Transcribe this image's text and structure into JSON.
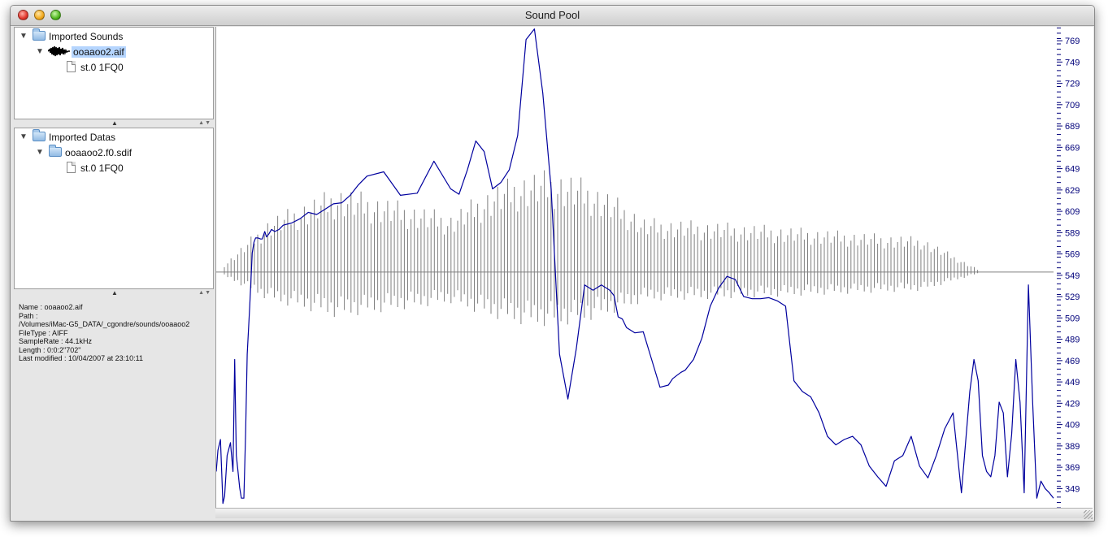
{
  "window": {
    "title": "Sound Pool"
  },
  "sounds_tree": {
    "root_label": "Imported Sounds",
    "file_label": "ooaaoo2.aif",
    "child_label": "st.0 1FQ0"
  },
  "datas_tree": {
    "root_label": "Imported Datas",
    "file_label": "ooaaoo2.f0.sdif",
    "child_label": "st.0 1FQ0"
  },
  "info": {
    "name": "Name : ooaaoo2.aif",
    "path_label": "Path :",
    "path_value": "/Volumes/iMac-G5_DATA/_cgondre/sounds/ooaaoo2",
    "filetype": "FileType : AIFF",
    "samplerate": "SampleRate : 44.1kHz",
    "length": "Length : 0:0:2\"702\"",
    "last_modified": "Last modified : 10/04/2007 at 23:10:11"
  },
  "chart_data": {
    "type": "line",
    "title": "",
    "xlabel": "",
    "ylabel": "",
    "ylim": [
      331,
      782
    ],
    "yticks": [
      349,
      369,
      389,
      409,
      429,
      449,
      469,
      489,
      509,
      529,
      549,
      569,
      589,
      609,
      629,
      649,
      669,
      689,
      709,
      729,
      749,
      769
    ],
    "axis_color": "#00007a",
    "waveform_color": "#7f7f7f",
    "curve_color": "#00009e",
    "f0_series": {
      "x": [
        0.0,
        0.002,
        0.005,
        0.008,
        0.01,
        0.013,
        0.017,
        0.02,
        0.022,
        0.024,
        0.026,
        0.028,
        0.03,
        0.033,
        0.035,
        0.037,
        0.04,
        0.043,
        0.045,
        0.047,
        0.05,
        0.053,
        0.055,
        0.058,
        0.06,
        0.063,
        0.066,
        0.07,
        0.075,
        0.08,
        0.09,
        0.1,
        0.11,
        0.12,
        0.13,
        0.14,
        0.15,
        0.16,
        0.17,
        0.18,
        0.2,
        0.22,
        0.24,
        0.26,
        0.28,
        0.29,
        0.3,
        0.31,
        0.32,
        0.33,
        0.34,
        0.35,
        0.36,
        0.37,
        0.38,
        0.39,
        0.4,
        0.41,
        0.42,
        0.43,
        0.44,
        0.45,
        0.46,
        0.47,
        0.475,
        0.48,
        0.485,
        0.49,
        0.5,
        0.51,
        0.52,
        0.53,
        0.54,
        0.545,
        0.55,
        0.555,
        0.56,
        0.57,
        0.58,
        0.59,
        0.6,
        0.61,
        0.62,
        0.63,
        0.64,
        0.65,
        0.66,
        0.67,
        0.68,
        0.69,
        0.7,
        0.71,
        0.72,
        0.73,
        0.74,
        0.75,
        0.76,
        0.77,
        0.78,
        0.79,
        0.8,
        0.81,
        0.82,
        0.83,
        0.84,
        0.85,
        0.86,
        0.87,
        0.88,
        0.89,
        0.9,
        0.905,
        0.91,
        0.915,
        0.92,
        0.925,
        0.93,
        0.935,
        0.94,
        0.945,
        0.95,
        0.955,
        0.96,
        0.965,
        0.97,
        0.975,
        0.98,
        0.985,
        0.99,
        0.995,
        1.0
      ],
      "y": [
        365,
        385,
        395,
        335,
        342,
        380,
        392,
        365,
        470,
        380,
        365,
        350,
        340,
        340,
        400,
        475,
        520,
        570,
        580,
        584,
        584,
        583,
        583,
        590,
        585,
        588,
        592,
        590,
        592,
        596,
        598,
        602,
        608,
        606,
        611,
        616,
        617,
        624,
        634,
        642,
        646,
        624,
        626,
        656,
        630,
        625,
        648,
        675,
        665,
        630,
        636,
        648,
        680,
        770,
        780,
        720,
        630,
        475,
        433,
        480,
        540,
        535,
        540,
        535,
        530,
        510,
        508,
        500,
        495,
        496,
        470,
        444,
        446,
        452,
        455,
        458,
        460,
        470,
        490,
        520,
        537,
        548,
        545,
        529,
        527,
        527,
        528,
        525,
        520,
        450,
        440,
        435,
        420,
        398,
        390,
        395,
        398,
        390,
        370,
        360,
        351,
        375,
        380,
        398,
        370,
        359,
        380,
        405,
        420,
        345,
        440,
        470,
        450,
        380,
        365,
        360,
        380,
        430,
        420,
        360,
        400,
        470,
        430,
        345,
        540,
        430,
        340,
        356,
        349,
        345,
        340
      ]
    }
  }
}
